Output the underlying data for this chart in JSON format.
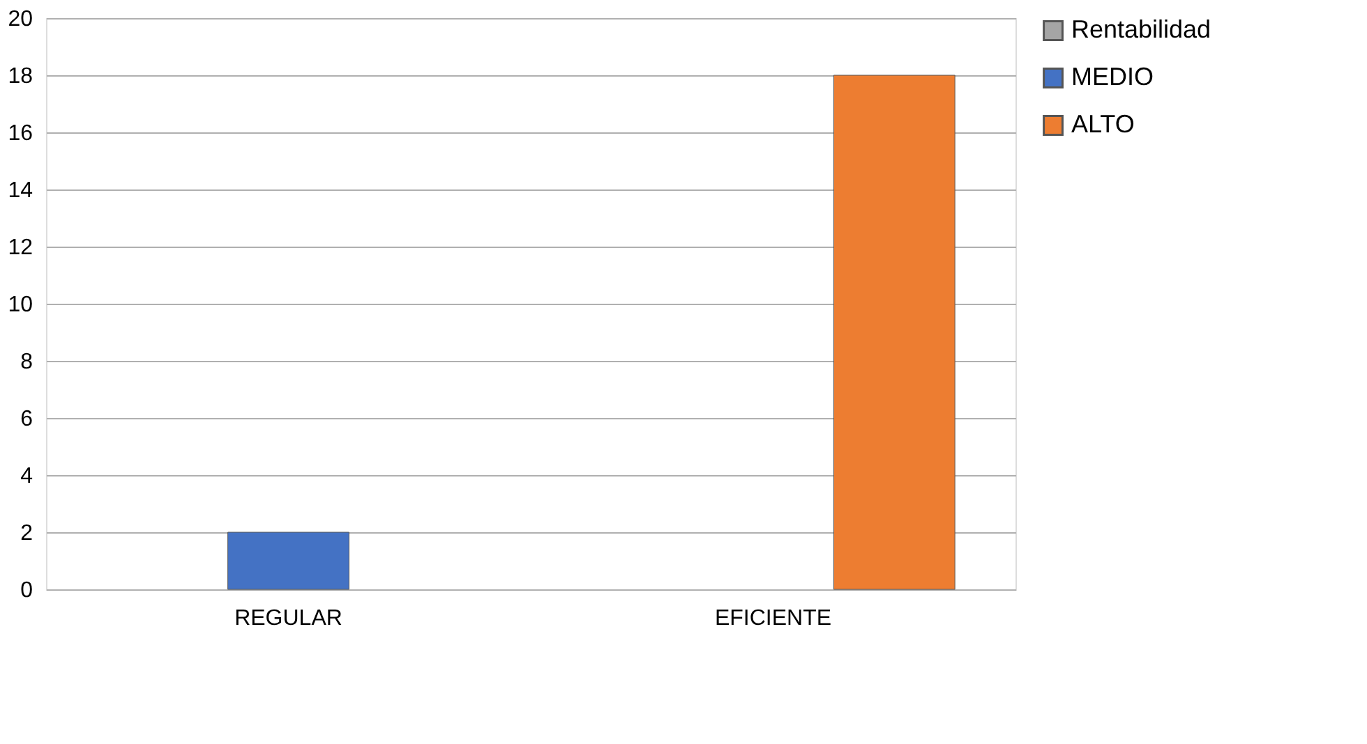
{
  "chart_data": {
    "type": "bar",
    "categories": [
      "REGULAR",
      "EFICIENTE"
    ],
    "series": [
      {
        "name": "Rentabilidad",
        "color": "#a5a5a5",
        "values": [
          null,
          null
        ]
      },
      {
        "name": "MEDIO",
        "color": "#4472c4",
        "values": [
          2,
          null
        ]
      },
      {
        "name": "ALTO",
        "color": "#ed7d31",
        "values": [
          null,
          18
        ]
      }
    ],
    "ylim": [
      0,
      20
    ],
    "yticks": [
      0,
      2,
      4,
      6,
      8,
      10,
      12,
      14,
      16,
      18,
      20
    ],
    "grid": "y",
    "legend": "right"
  }
}
